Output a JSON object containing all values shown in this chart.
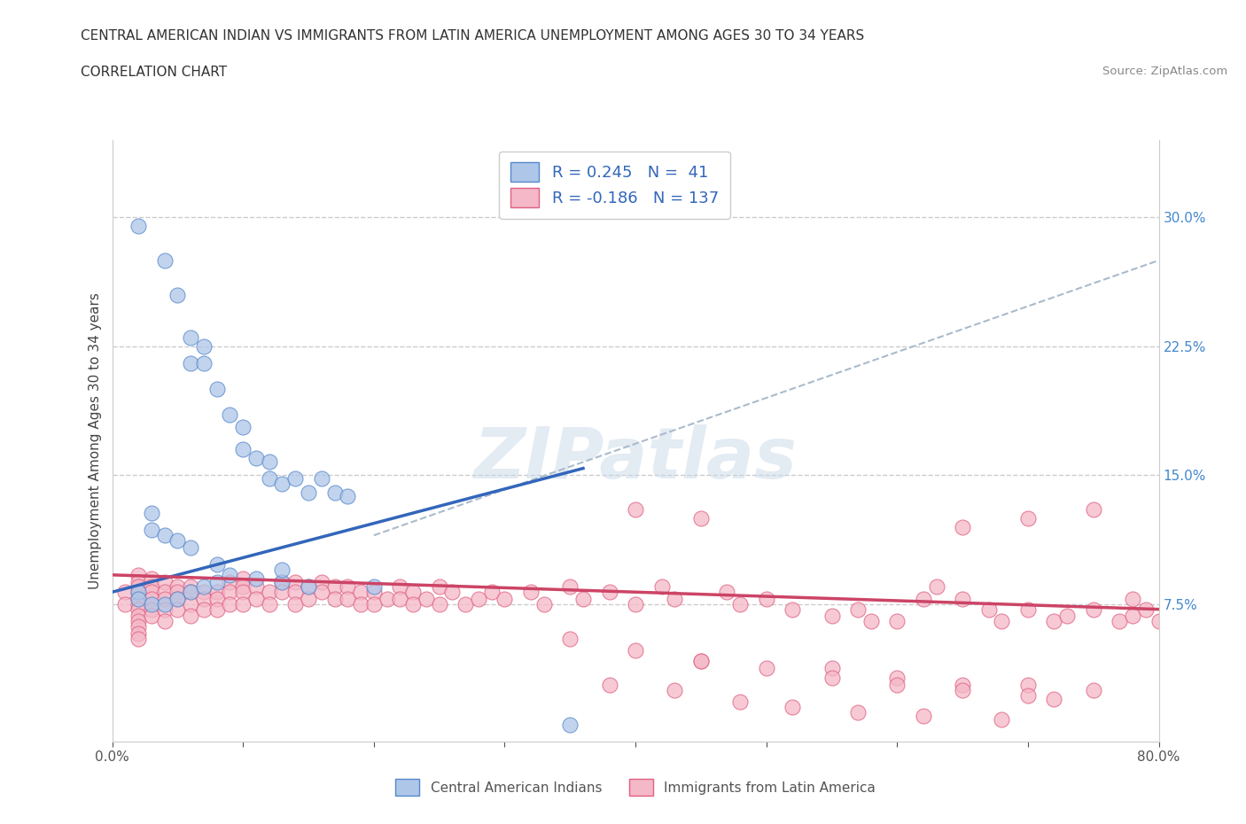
{
  "title_line1": "CENTRAL AMERICAN INDIAN VS IMMIGRANTS FROM LATIN AMERICA UNEMPLOYMENT AMONG AGES 30 TO 34 YEARS",
  "title_line2": "CORRELATION CHART",
  "source_text": "Source: ZipAtlas.com",
  "ylabel": "Unemployment Among Ages 30 to 34 years",
  "xlim": [
    0.0,
    0.8
  ],
  "ylim": [
    -0.005,
    0.345
  ],
  "xtick_vals": [
    0.0,
    0.1,
    0.2,
    0.3,
    0.4,
    0.5,
    0.6,
    0.7,
    0.8
  ],
  "xticklabels": [
    "0.0%",
    "",
    "",
    "",
    "",
    "",
    "",
    "",
    "80.0%"
  ],
  "yticks_right": [
    0.075,
    0.15,
    0.225,
    0.3
  ],
  "ytick_right_labels": [
    "7.5%",
    "15.0%",
    "22.5%",
    "30.0%"
  ],
  "blue_R": 0.245,
  "blue_N": 41,
  "pink_R": -0.186,
  "pink_N": 137,
  "blue_color": "#aec6e8",
  "blue_edge_color": "#5588cc",
  "pink_color": "#f4b8c8",
  "pink_edge_color": "#e06080",
  "blue_line_color": "#3366bb",
  "pink_line_color": "#cc4466",
  "gray_line_color": "#aabbcc",
  "legend_label_blue": "Central American Indians",
  "legend_label_pink": "Immigrants from Latin America",
  "watermark_text": "ZIPatlas",
  "blue_line_x": [
    0.0,
    0.36
  ],
  "blue_line_y": [
    0.082,
    0.154
  ],
  "pink_line_x": [
    0.0,
    0.8
  ],
  "pink_line_y": [
    0.092,
    0.072
  ],
  "gray_line_x": [
    0.2,
    0.8
  ],
  "gray_line_y": [
    0.115,
    0.275
  ],
  "blue_scatter_x": [
    0.02,
    0.04,
    0.05,
    0.06,
    0.06,
    0.07,
    0.07,
    0.08,
    0.09,
    0.1,
    0.1,
    0.11,
    0.12,
    0.12,
    0.13,
    0.14,
    0.15,
    0.16,
    0.17,
    0.18,
    0.03,
    0.03,
    0.04,
    0.05,
    0.06,
    0.08,
    0.09,
    0.11,
    0.13,
    0.15,
    0.02,
    0.02,
    0.03,
    0.04,
    0.05,
    0.06,
    0.07,
    0.08,
    0.13,
    0.2,
    0.35
  ],
  "blue_scatter_y": [
    0.295,
    0.275,
    0.255,
    0.23,
    0.215,
    0.225,
    0.215,
    0.2,
    0.185,
    0.178,
    0.165,
    0.16,
    0.148,
    0.158,
    0.145,
    0.148,
    0.14,
    0.148,
    0.14,
    0.138,
    0.128,
    0.118,
    0.115,
    0.112,
    0.108,
    0.098,
    0.092,
    0.09,
    0.088,
    0.085,
    0.082,
    0.078,
    0.075,
    0.075,
    0.078,
    0.082,
    0.085,
    0.088,
    0.095,
    0.085,
    0.005
  ],
  "pink_scatter_x": [
    0.01,
    0.01,
    0.02,
    0.02,
    0.02,
    0.02,
    0.02,
    0.02,
    0.02,
    0.02,
    0.02,
    0.02,
    0.02,
    0.02,
    0.03,
    0.03,
    0.03,
    0.03,
    0.03,
    0.03,
    0.04,
    0.04,
    0.04,
    0.04,
    0.04,
    0.05,
    0.05,
    0.05,
    0.05,
    0.06,
    0.06,
    0.06,
    0.06,
    0.07,
    0.07,
    0.07,
    0.08,
    0.08,
    0.08,
    0.09,
    0.09,
    0.09,
    0.1,
    0.1,
    0.1,
    0.1,
    0.11,
    0.11,
    0.12,
    0.12,
    0.13,
    0.13,
    0.14,
    0.14,
    0.14,
    0.15,
    0.15,
    0.16,
    0.16,
    0.17,
    0.17,
    0.18,
    0.18,
    0.19,
    0.19,
    0.2,
    0.2,
    0.21,
    0.22,
    0.22,
    0.23,
    0.23,
    0.24,
    0.25,
    0.25,
    0.26,
    0.27,
    0.28,
    0.29,
    0.3,
    0.32,
    0.33,
    0.35,
    0.36,
    0.38,
    0.4,
    0.4,
    0.42,
    0.43,
    0.45,
    0.47,
    0.48,
    0.5,
    0.52,
    0.55,
    0.57,
    0.58,
    0.6,
    0.62,
    0.63,
    0.65,
    0.65,
    0.67,
    0.68,
    0.7,
    0.7,
    0.72,
    0.73,
    0.75,
    0.75,
    0.77,
    0.78,
    0.78,
    0.79,
    0.8,
    0.35,
    0.4,
    0.45,
    0.55,
    0.6,
    0.65,
    0.7,
    0.75,
    0.45,
    0.5,
    0.55,
    0.6,
    0.65,
    0.7,
    0.72,
    0.38,
    0.43,
    0.48,
    0.52,
    0.57,
    0.62,
    0.68
  ],
  "pink_scatter_y": [
    0.082,
    0.075,
    0.092,
    0.088,
    0.085,
    0.082,
    0.078,
    0.075,
    0.072,
    0.068,
    0.065,
    0.062,
    0.058,
    0.055,
    0.09,
    0.085,
    0.082,
    0.078,
    0.072,
    0.068,
    0.088,
    0.082,
    0.078,
    0.072,
    0.065,
    0.085,
    0.082,
    0.078,
    0.072,
    0.085,
    0.082,
    0.075,
    0.068,
    0.082,
    0.078,
    0.072,
    0.082,
    0.078,
    0.072,
    0.088,
    0.082,
    0.075,
    0.09,
    0.085,
    0.082,
    0.075,
    0.085,
    0.078,
    0.082,
    0.075,
    0.088,
    0.082,
    0.088,
    0.082,
    0.075,
    0.085,
    0.078,
    0.088,
    0.082,
    0.085,
    0.078,
    0.085,
    0.078,
    0.082,
    0.075,
    0.082,
    0.075,
    0.078,
    0.085,
    0.078,
    0.082,
    0.075,
    0.078,
    0.085,
    0.075,
    0.082,
    0.075,
    0.078,
    0.082,
    0.078,
    0.082,
    0.075,
    0.085,
    0.078,
    0.082,
    0.13,
    0.075,
    0.085,
    0.078,
    0.125,
    0.082,
    0.075,
    0.078,
    0.072,
    0.068,
    0.072,
    0.065,
    0.065,
    0.078,
    0.085,
    0.078,
    0.12,
    0.072,
    0.065,
    0.072,
    0.125,
    0.065,
    0.068,
    0.072,
    0.13,
    0.065,
    0.078,
    0.068,
    0.072,
    0.065,
    0.055,
    0.048,
    0.042,
    0.038,
    0.032,
    0.028,
    0.028,
    0.025,
    0.042,
    0.038,
    0.032,
    0.028,
    0.025,
    0.022,
    0.02,
    0.028,
    0.025,
    0.018,
    0.015,
    0.012,
    0.01,
    0.008
  ]
}
